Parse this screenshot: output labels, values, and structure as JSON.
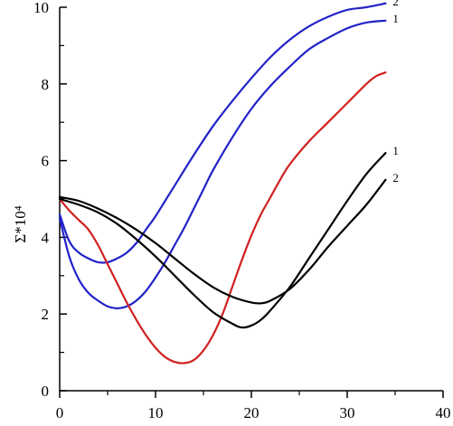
{
  "chart_data": {
    "type": "line",
    "title": "",
    "xlabel": "",
    "ylabel": "Σ*10⁴",
    "xlim": [
      0,
      40
    ],
    "ylim": [
      0,
      10
    ],
    "x_ticks": [
      "0",
      "10",
      "20",
      "30",
      "40"
    ],
    "y_ticks": [
      "0",
      "2",
      "4",
      "6",
      "8",
      "10"
    ],
    "grid": false,
    "series": [
      {
        "label": "2",
        "color": "#2222c8",
        "points": [
          [
            0,
            4.6
          ],
          [
            1,
            3.9
          ],
          [
            2,
            3.6
          ],
          [
            3,
            3.45
          ],
          [
            4,
            3.35
          ],
          [
            5,
            3.35
          ],
          [
            6,
            3.45
          ],
          [
            7,
            3.6
          ],
          [
            8,
            3.85
          ],
          [
            9,
            4.2
          ],
          [
            10,
            4.55
          ],
          [
            11,
            4.95
          ],
          [
            12,
            5.35
          ],
          [
            14,
            6.15
          ],
          [
            16,
            6.9
          ],
          [
            18,
            7.55
          ],
          [
            20,
            8.15
          ],
          [
            22,
            8.7
          ],
          [
            24,
            9.15
          ],
          [
            26,
            9.5
          ],
          [
            28,
            9.75
          ],
          [
            30,
            9.93
          ],
          [
            32,
            10.0
          ],
          [
            34,
            10.1
          ]
        ]
      },
      {
        "label": "1",
        "color": "#2222c8",
        "points": [
          [
            0,
            4.5
          ],
          [
            1,
            3.5
          ],
          [
            2,
            2.9
          ],
          [
            3,
            2.55
          ],
          [
            4,
            2.35
          ],
          [
            5,
            2.2
          ],
          [
            6,
            2.15
          ],
          [
            7,
            2.2
          ],
          [
            8,
            2.35
          ],
          [
            9,
            2.6
          ],
          [
            10,
            2.95
          ],
          [
            11,
            3.35
          ],
          [
            12,
            3.8
          ],
          [
            13,
            4.25
          ],
          [
            14,
            4.75
          ],
          [
            15,
            5.25
          ],
          [
            16,
            5.75
          ],
          [
            18,
            6.6
          ],
          [
            20,
            7.35
          ],
          [
            22,
            7.95
          ],
          [
            24,
            8.45
          ],
          [
            26,
            8.9
          ],
          [
            28,
            9.2
          ],
          [
            30,
            9.45
          ],
          [
            32,
            9.6
          ],
          [
            34,
            9.65
          ]
        ]
      },
      {
        "label": "",
        "color": "#d02020",
        "points": [
          [
            0,
            5.0
          ],
          [
            1,
            4.7
          ],
          [
            2,
            4.45
          ],
          [
            3,
            4.2
          ],
          [
            4,
            3.8
          ],
          [
            5,
            3.3
          ],
          [
            6,
            2.8
          ],
          [
            7,
            2.3
          ],
          [
            8,
            1.85
          ],
          [
            9,
            1.45
          ],
          [
            10,
            1.12
          ],
          [
            11,
            0.88
          ],
          [
            12,
            0.75
          ],
          [
            13,
            0.72
          ],
          [
            14,
            0.8
          ],
          [
            15,
            1.05
          ],
          [
            16,
            1.45
          ],
          [
            17,
            2.0
          ],
          [
            18,
            2.7
          ],
          [
            19,
            3.4
          ],
          [
            20,
            4.05
          ],
          [
            21,
            4.6
          ],
          [
            22,
            5.05
          ],
          [
            23,
            5.5
          ],
          [
            24,
            5.9
          ],
          [
            26,
            6.5
          ],
          [
            28,
            7.0
          ],
          [
            30,
            7.5
          ],
          [
            32,
            8.0
          ],
          [
            33,
            8.2
          ],
          [
            34,
            8.3
          ]
        ]
      },
      {
        "label": "1",
        "color": "#000000",
        "points": [
          [
            0,
            5.0
          ],
          [
            2,
            4.85
          ],
          [
            4,
            4.65
          ],
          [
            6,
            4.35
          ],
          [
            8,
            3.95
          ],
          [
            10,
            3.5
          ],
          [
            12,
            3.0
          ],
          [
            14,
            2.5
          ],
          [
            16,
            2.05
          ],
          [
            18,
            1.75
          ],
          [
            19,
            1.65
          ],
          [
            20,
            1.7
          ],
          [
            21,
            1.85
          ],
          [
            22,
            2.1
          ],
          [
            24,
            2.7
          ],
          [
            26,
            3.45
          ],
          [
            28,
            4.2
          ],
          [
            30,
            4.95
          ],
          [
            32,
            5.65
          ],
          [
            34,
            6.2
          ]
        ]
      },
      {
        "label": "2",
        "color": "#000000",
        "points": [
          [
            0,
            5.05
          ],
          [
            2,
            4.95
          ],
          [
            4,
            4.75
          ],
          [
            6,
            4.5
          ],
          [
            8,
            4.2
          ],
          [
            10,
            3.85
          ],
          [
            12,
            3.45
          ],
          [
            14,
            3.05
          ],
          [
            16,
            2.7
          ],
          [
            18,
            2.45
          ],
          [
            20,
            2.3
          ],
          [
            21,
            2.28
          ],
          [
            22,
            2.35
          ],
          [
            24,
            2.65
          ],
          [
            26,
            3.15
          ],
          [
            28,
            3.75
          ],
          [
            30,
            4.3
          ],
          [
            32,
            4.85
          ],
          [
            34,
            5.5
          ]
        ]
      }
    ]
  }
}
